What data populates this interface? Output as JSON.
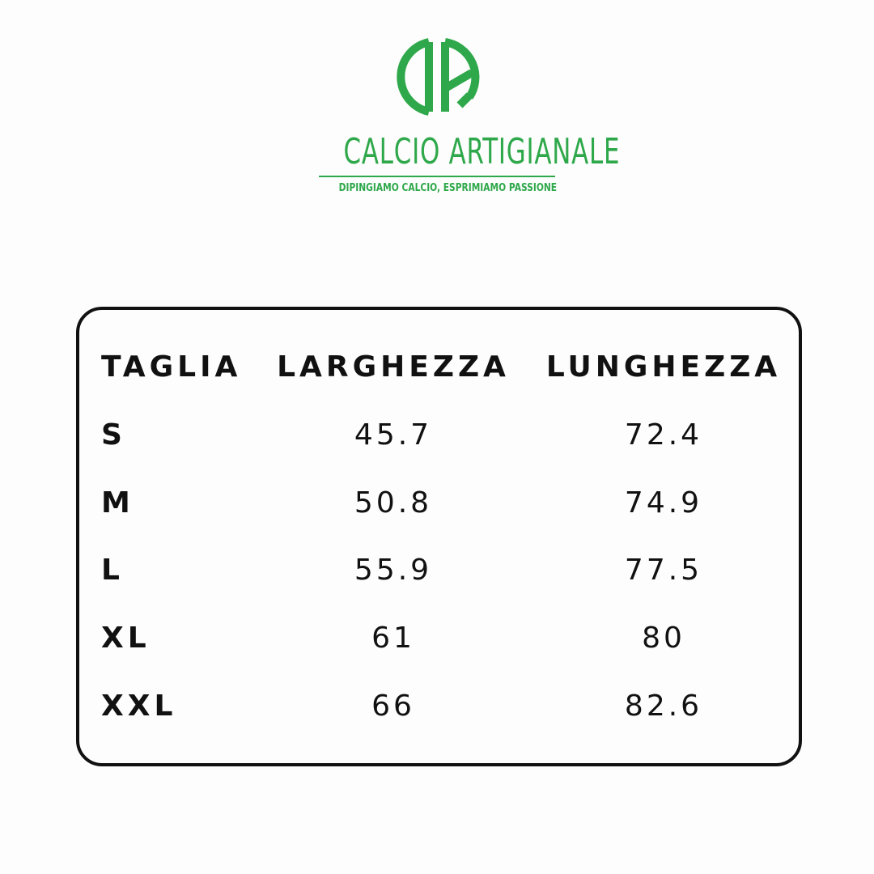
{
  "logo": {
    "monogram": "CA",
    "brand": "CALCIO ARTIGIANALE",
    "tagline": "DIPINGIAMO CALCIO, ESPRIMIAMO PASSIONE",
    "color": "#2ea84a"
  },
  "table": {
    "headers": [
      "TAGLIA",
      "LARGHEZZA",
      "LUNGHEZZA"
    ],
    "rows": [
      [
        "S",
        "45.7",
        "72.4"
      ],
      [
        "M",
        "50.8",
        "74.9"
      ],
      [
        "L",
        "55.9",
        "77.5"
      ],
      [
        "XL",
        "61",
        "80"
      ],
      [
        "XXL",
        "66",
        "82.6"
      ]
    ]
  }
}
